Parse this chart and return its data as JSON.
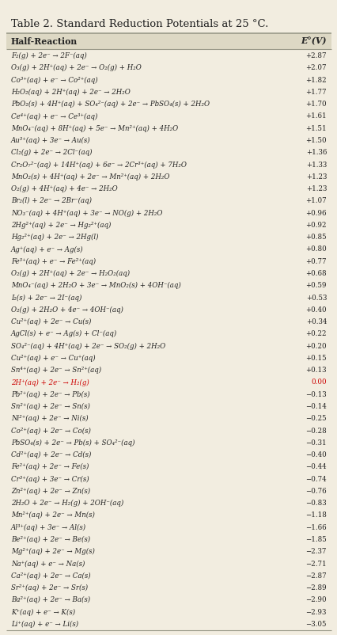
{
  "title": "Table 2. Standard Reduction Potentials at 25 °C.",
  "header_col1": "Half-Reaction",
  "header_col2": "E°(V)",
  "bg_color": "#f2ede0",
  "header_bg": "#ddd8c4",
  "title_color": "#222222",
  "text_color": "#222222",
  "highlight_color": "#cc0000",
  "rows": [
    [
      "F₂(g) + 2e⁻ → 2F⁻(aq)",
      "+2.87",
      false
    ],
    [
      "O₃(g) + 2H⁺(aq) + 2e⁻ → O₂(g) + H₂O",
      "+2.07",
      false
    ],
    [
      "Co³⁺(aq) + e⁻ → Co²⁺(aq)",
      "+1.82",
      false
    ],
    [
      "H₂O₂(aq) + 2H⁺(aq) + 2e⁻ → 2H₂O",
      "+1.77",
      false
    ],
    [
      "PbO₂(s) + 4H⁺(aq) + SO₄²⁻(aq) + 2e⁻ → PbSO₄(s) + 2H₂O",
      "+1.70",
      false
    ],
    [
      "Ce⁴⁺(aq) + e⁻ → Ce³⁺(aq)",
      "+1.61",
      false
    ],
    [
      "MnO₄⁻(aq) + 8H⁺(aq) + 5e⁻ → Mn²⁺(aq) + 4H₂O",
      "+1.51",
      false
    ],
    [
      "Au³⁺(aq) + 3e⁻ → Au(s)",
      "+1.50",
      false
    ],
    [
      "Cl₂(g) + 2e⁻ → 2Cl⁻(aq)",
      "+1.36",
      false
    ],
    [
      "Cr₂O₇²⁻(aq) + 14H⁺(aq) + 6e⁻ → 2Cr³⁺(aq) + 7H₂O",
      "+1.33",
      false
    ],
    [
      "MnO₂(s) + 4H⁺(aq) + 2e⁻ → Mn²⁺(aq) + 2H₂O",
      "+1.23",
      false
    ],
    [
      "O₂(g) + 4H⁺(aq) + 4e⁻ → 2H₂O",
      "+1.23",
      false
    ],
    [
      "Br₂(l) + 2e⁻ → 2Br⁻(aq)",
      "+1.07",
      false
    ],
    [
      "NO₃⁻(aq) + 4H⁺(aq) + 3e⁻ → NO(g) + 2H₂O",
      "+0.96",
      false
    ],
    [
      "2Hg²⁺(aq) + 2e⁻ → Hg₂²⁺(aq)",
      "+0.92",
      false
    ],
    [
      "Hg₂²⁺(aq) + 2e⁻ → 2Hg(l)",
      "+0.85",
      false
    ],
    [
      "Ag⁺(aq) + e⁻ → Ag(s)",
      "+0.80",
      false
    ],
    [
      "Fe³⁺(aq) + e⁻ → Fe²⁺(aq)",
      "+0.77",
      false
    ],
    [
      "O₂(g) + 2H⁺(aq) + 2e⁻ → H₂O₂(aq)",
      "+0.68",
      false
    ],
    [
      "MnO₄⁻(aq) + 2H₂O + 3e⁻ → MnO₂(s) + 4OH⁻(aq)",
      "+0.59",
      false
    ],
    [
      "I₂(s) + 2e⁻ → 2I⁻(aq)",
      "+0.53",
      false
    ],
    [
      "O₂(g) + 2H₂O + 4e⁻ → 4OH⁻(aq)",
      "+0.40",
      false
    ],
    [
      "Cu²⁺(aq) + 2e⁻ → Cu(s)",
      "+0.34",
      false
    ],
    [
      "AgCl(s) + e⁻ → Ag(s) + Cl⁻(aq)",
      "+0.22",
      false
    ],
    [
      "SO₄²⁻(aq) + 4H⁺(aq) + 2e⁻ → SO₂(g) + 2H₂O",
      "+0.20",
      false
    ],
    [
      "Cu²⁺(aq) + e⁻ → Cu⁺(aq)",
      "+0.15",
      false
    ],
    [
      "Sn⁴⁺(aq) + 2e⁻ → Sn²⁺(aq)",
      "+0.13",
      false
    ],
    [
      "2H⁺(aq) + 2e⁻ → H₂(g)",
      "0.00",
      true
    ],
    [
      "Pb²⁺(aq) + 2e⁻ → Pb(s)",
      "−0.13",
      false
    ],
    [
      "Sn²⁺(aq) + 2e⁻ → Sn(s)",
      "−0.14",
      false
    ],
    [
      "Ni²⁺(aq) + 2e⁻ → Ni(s)",
      "−0.25",
      false
    ],
    [
      "Co²⁺(aq) + 2e⁻ → Co(s)",
      "−0.28",
      false
    ],
    [
      "PbSO₄(s) + 2e⁻ → Pb(s) + SO₄²⁻(aq)",
      "−0.31",
      false
    ],
    [
      "Cd²⁺(aq) + 2e⁻ → Cd(s)",
      "−0.40",
      false
    ],
    [
      "Fe²⁺(aq) + 2e⁻ → Fe(s)",
      "−0.44",
      false
    ],
    [
      "Cr³⁺(aq) + 3e⁻ → Cr(s)",
      "−0.74",
      false
    ],
    [
      "Zn²⁺(aq) + 2e⁻ → Zn(s)",
      "−0.76",
      false
    ],
    [
      "2H₂O + 2e⁻ → H₂(g) + 2OH⁻(aq)",
      "−0.83",
      false
    ],
    [
      "Mn²⁺(aq) + 2e⁻ → Mn(s)",
      "−1.18",
      false
    ],
    [
      "Al³⁺(aq) + 3e⁻ → Al(s)",
      "−1.66",
      false
    ],
    [
      "Be²⁺(aq) + 2e⁻ → Be(s)",
      "−1.85",
      false
    ],
    [
      "Mg²⁺(aq) + 2e⁻ → Mg(s)",
      "−2.37",
      false
    ],
    [
      "Na⁺(aq) + e⁻ → Na(s)",
      "−2.71",
      false
    ],
    [
      "Ca²⁺(aq) + 2e⁻ → Ca(s)",
      "−2.87",
      false
    ],
    [
      "Sr²⁺(aq) + 2e⁻ → Sr(s)",
      "−2.89",
      false
    ],
    [
      "Ba²⁺(aq) + 2e⁻ → Ba(s)",
      "−2.90",
      false
    ],
    [
      "K⁺(aq) + e⁻ → K(s)",
      "−2.93",
      false
    ],
    [
      "Li⁺(aq) + e⁻ → Li(s)",
      "−3.05",
      false
    ]
  ]
}
